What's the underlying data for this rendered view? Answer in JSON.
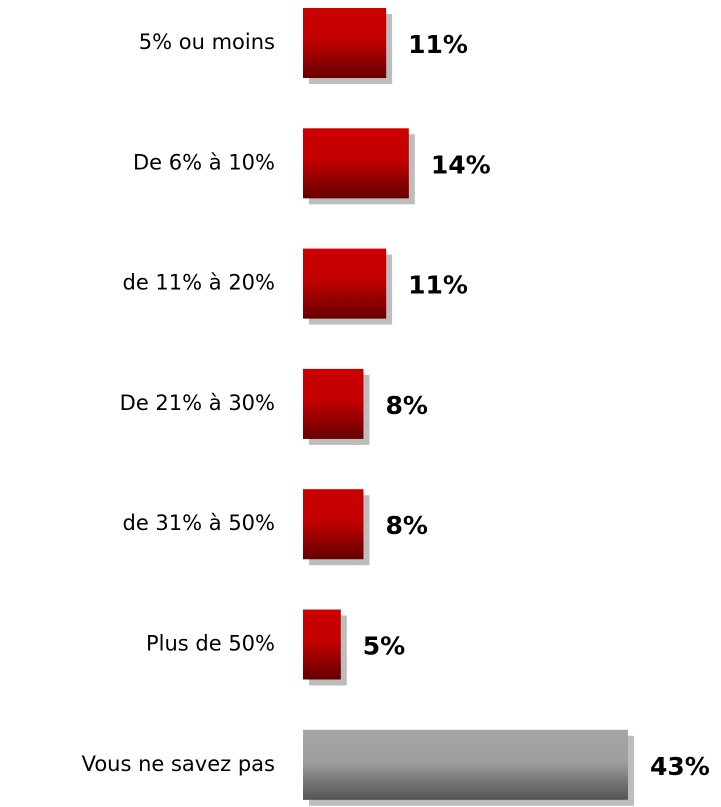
{
  "chart_data": {
    "type": "barh",
    "categories": [
      "5% ou moins",
      "De 6% à 10%",
      "de 11% à 20%",
      "De 21% à 30%",
      "de 31% à 50%",
      "Plus de 50%",
      "Vous ne savez pas"
    ],
    "values": [
      11,
      14,
      11,
      8,
      8,
      5,
      43
    ],
    "value_labels": [
      "11%",
      "14%",
      "11%",
      "8%",
      "8%",
      "5%",
      "43%"
    ],
    "colors": [
      "#cc0000",
      "#cc0000",
      "#cc0000",
      "#cc0000",
      "#cc0000",
      "#cc0000",
      "#a6a6a6"
    ]
  }
}
